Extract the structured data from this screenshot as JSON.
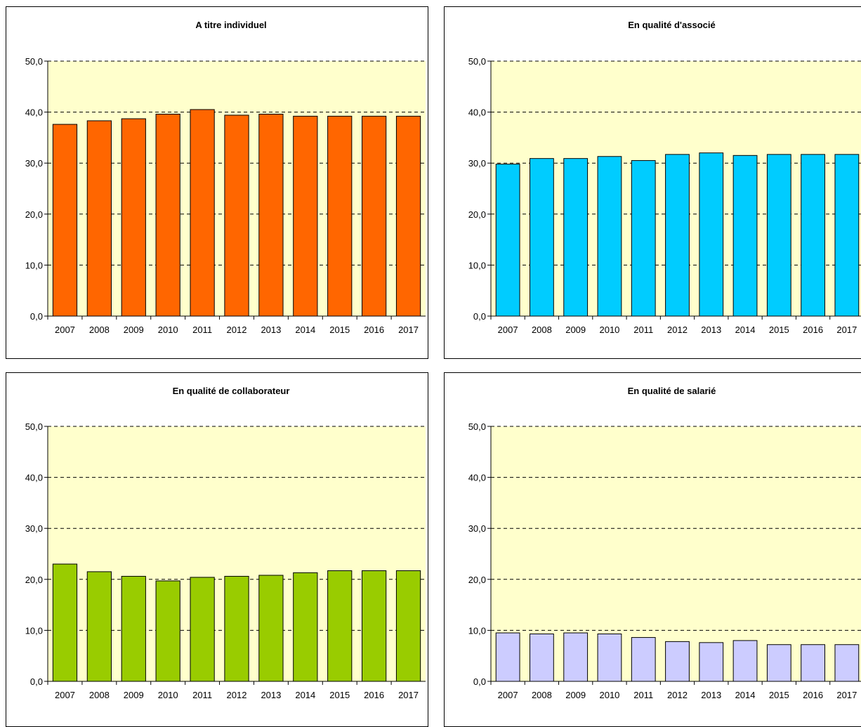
{
  "colors": {
    "plot_background": "#ffffcc",
    "gridline": "#000000"
  },
  "chart_data": [
    {
      "type": "bar",
      "title": "A titre individuel",
      "categories": [
        "2007",
        "2008",
        "2009",
        "2010",
        "2011",
        "2012",
        "2013",
        "2014",
        "2015",
        "2016",
        "2017"
      ],
      "values": [
        37.6,
        38.3,
        38.7,
        39.6,
        40.5,
        39.4,
        39.6,
        39.2,
        39.2,
        39.2,
        39.2
      ],
      "ylim": [
        0,
        50
      ],
      "yticks": [
        "0,0",
        "10,0",
        "20,0",
        "30,0",
        "40,0",
        "50,0"
      ],
      "grid": "dashed horizontal",
      "bar_color": "#ff6600"
    },
    {
      "type": "bar",
      "title": "En qualité d'associé",
      "categories": [
        "2007",
        "2008",
        "2009",
        "2010",
        "2011",
        "2012",
        "2013",
        "2014",
        "2015",
        "2016",
        "2017"
      ],
      "values": [
        29.8,
        30.9,
        30.9,
        31.3,
        30.5,
        31.7,
        32.0,
        31.5,
        31.7,
        31.7,
        31.7
      ],
      "ylim": [
        0,
        50
      ],
      "yticks": [
        "0,0",
        "10,0",
        "20,0",
        "30,0",
        "40,0",
        "50,0"
      ],
      "grid": "dashed horizontal",
      "bar_color": "#00ccff"
    },
    {
      "type": "bar",
      "title": "En qualité de collaborateur",
      "categories": [
        "2007",
        "2008",
        "2009",
        "2010",
        "2011",
        "2012",
        "2013",
        "2014",
        "2015",
        "2016",
        "2017"
      ],
      "values": [
        23.0,
        21.5,
        20.6,
        19.7,
        20.4,
        20.6,
        20.8,
        21.3,
        21.7,
        21.7,
        21.7
      ],
      "ylim": [
        0,
        50
      ],
      "yticks": [
        "0,0",
        "10,0",
        "20,0",
        "30,0",
        "40,0",
        "50,0"
      ],
      "grid": "dashed horizontal",
      "bar_color": "#99cc00"
    },
    {
      "type": "bar",
      "title": "En qualité de salarié",
      "categories": [
        "2007",
        "2008",
        "2009",
        "2010",
        "2011",
        "2012",
        "2013",
        "2014",
        "2015",
        "2016",
        "2017"
      ],
      "values": [
        9.5,
        9.3,
        9.5,
        9.3,
        8.6,
        7.8,
        7.6,
        8.0,
        7.2,
        7.2,
        7.2
      ],
      "ylim": [
        0,
        50
      ],
      "yticks": [
        "0,0",
        "10,0",
        "20,0",
        "30,0",
        "40,0",
        "50,0"
      ],
      "grid": "dashed horizontal",
      "bar_color": "#ccccff"
    }
  ]
}
